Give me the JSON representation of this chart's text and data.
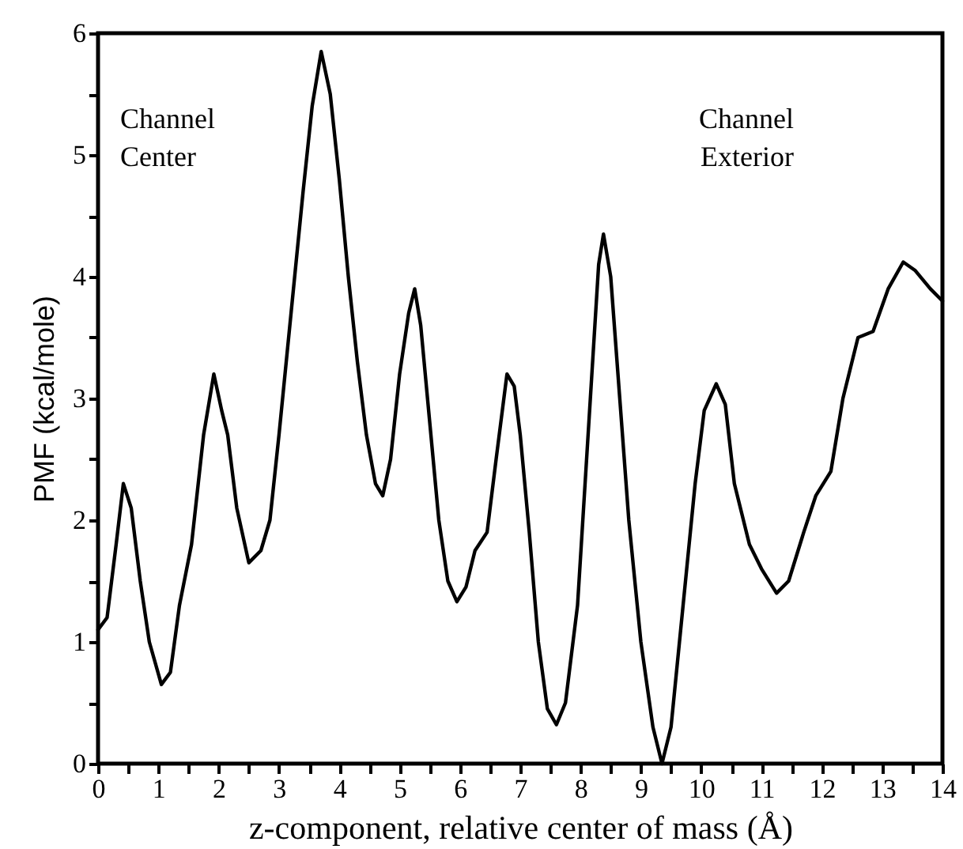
{
  "chart_data": {
    "type": "line",
    "xlabel": "z-component, relative center of mass (Å)",
    "ylabel": "PMF (kcal/mole)",
    "annotations": [
      "Channel\nCenter",
      "Channel\nExterior"
    ],
    "xlim": [
      0,
      14
    ],
    "ylim": [
      0,
      6
    ],
    "xticks": [
      0,
      {
        "value": 0.5,
        "label": null
      },
      1,
      {
        "value": 1.5,
        "label": null
      },
      2,
      {
        "value": 2.5,
        "label": null
      },
      3,
      {
        "value": 3.5,
        "label": null
      },
      4,
      {
        "value": 4.5,
        "label": null
      },
      5,
      {
        "value": 5.5,
        "label": null
      },
      6,
      {
        "value": 6.5,
        "label": null
      },
      7,
      {
        "value": 7.5,
        "label": null
      },
      8,
      {
        "value": 8.5,
        "label": null
      },
      9,
      {
        "value": 9.5,
        "label": null
      },
      10,
      {
        "value": 10.5,
        "label": null
      },
      11,
      {
        "value": 11.5,
        "label": null
      },
      12,
      {
        "value": 12.5,
        "label": null
      },
      13,
      {
        "value": 13.5,
        "label": null
      },
      14
    ],
    "yticks": [
      0,
      {
        "value": 0.5,
        "label": null
      },
      1,
      {
        "value": 1.5,
        "label": null
      },
      2,
      {
        "value": 2.5,
        "label": null
      },
      3,
      {
        "value": 3.5,
        "label": null
      },
      4,
      {
        "value": 4.5,
        "label": null
      },
      5,
      {
        "value": 5.5,
        "label": null
      },
      6
    ],
    "grid": false,
    "marker": "none",
    "line_style": "solid",
    "x": [
      0,
      0.15,
      0.3,
      0.42,
      0.55,
      0.7,
      0.85,
      1.05,
      1.2,
      1.35,
      1.55,
      1.75,
      1.92,
      2.05,
      2.15,
      2.3,
      2.5,
      2.7,
      2.85,
      3.0,
      3.2,
      3.4,
      3.55,
      3.7,
      3.85,
      4.0,
      4.15,
      4.3,
      4.45,
      4.6,
      4.72,
      4.85,
      5.0,
      5.15,
      5.25,
      5.35,
      5.5,
      5.65,
      5.8,
      5.95,
      6.1,
      6.25,
      6.45,
      6.6,
      6.78,
      6.9,
      7.0,
      7.15,
      7.3,
      7.45,
      7.6,
      7.75,
      7.95,
      8.15,
      8.3,
      8.38,
      8.5,
      8.65,
      8.8,
      9.0,
      9.2,
      9.35,
      9.5,
      9.7,
      9.9,
      10.05,
      10.25,
      10.4,
      10.55,
      10.8,
      11.0,
      11.25,
      11.45,
      11.7,
      11.9,
      12.15,
      12.35,
      12.6,
      12.85,
      13.1,
      13.35,
      13.55,
      13.8,
      14.0
    ],
    "series": [
      {
        "color": "#000000",
        "values": [
          1.1,
          1.2,
          1.8,
          2.3,
          2.1,
          1.5,
          1.0,
          0.65,
          0.75,
          1.3,
          1.8,
          2.7,
          3.2,
          2.9,
          2.7,
          2.1,
          1.65,
          1.75,
          2.0,
          2.7,
          3.7,
          4.7,
          5.4,
          5.85,
          5.5,
          4.8,
          4.0,
          3.3,
          2.7,
          2.3,
          2.2,
          2.5,
          3.2,
          3.7,
          3.9,
          3.6,
          2.8,
          2.0,
          1.5,
          1.33,
          1.45,
          1.75,
          1.9,
          2.5,
          3.2,
          3.1,
          2.7,
          1.9,
          1.0,
          0.45,
          0.32,
          0.5,
          1.3,
          2.9,
          4.1,
          4.35,
          4.0,
          3.0,
          2.0,
          1.0,
          0.3,
          0.0,
          0.3,
          1.3,
          2.3,
          2.9,
          3.12,
          2.95,
          2.3,
          1.8,
          1.6,
          1.4,
          1.5,
          1.9,
          2.2,
          2.4,
          3.0,
          3.5,
          3.55,
          3.9,
          4.12,
          4.05,
          3.9,
          3.8
        ]
      }
    ]
  }
}
